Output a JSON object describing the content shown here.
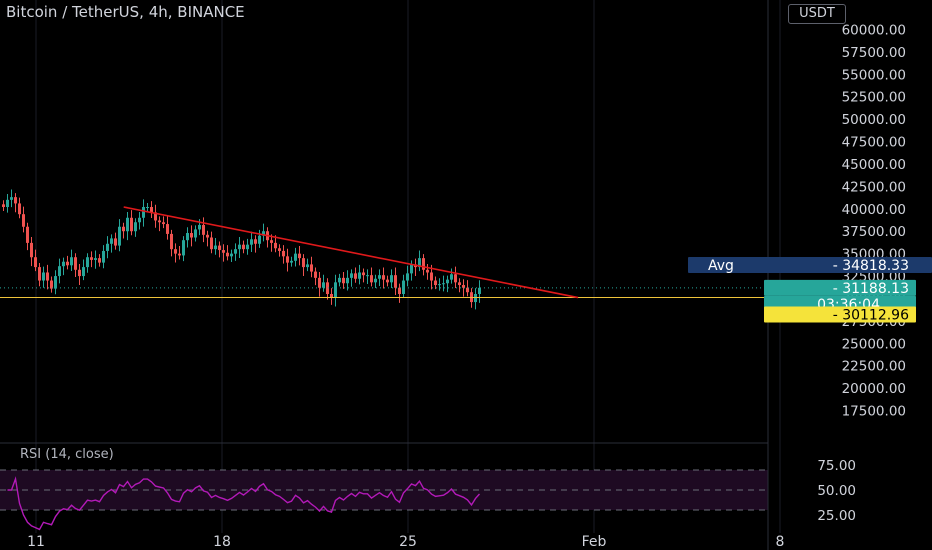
{
  "header": {
    "title": "Bitcoin / TetherUS, 4h, BINANCE",
    "currency": "USDT"
  },
  "rsi": {
    "label": "RSI (14, close)"
  },
  "tags": {
    "avg_label": "Avg",
    "avg_value": "34818.33",
    "last_price": "31188.13",
    "countdown": "03:36:04",
    "level_price": "30112.96"
  },
  "colors": {
    "up": "#26a69a",
    "down": "#ef5350",
    "trendline": "#e0191b",
    "level_line": "#f0c43a",
    "rsi_line": "#b31ab8",
    "rsi_band": "#1e0a22",
    "avg_tag": "#1c3a6b",
    "level_tag": "#f5e33a"
  },
  "chart_data": {
    "type": "candlestick",
    "x_ticks": [
      "11",
      "18",
      "25",
      "Feb",
      "8"
    ],
    "price_axis": {
      "ylim": [
        15000,
        61500
      ],
      "ticks": [
        "60000.00",
        "57500.00",
        "55000.00",
        "52500.00",
        "50000.00",
        "47500.00",
        "45000.00",
        "42500.00",
        "40000.00",
        "37500.00",
        "35000.00",
        "32500.00",
        "30000.00",
        "27500.00",
        "25000.00",
        "22500.00",
        "20000.00",
        "17500.00"
      ]
    },
    "rsi_axis": {
      "ylim": [
        10,
        90
      ],
      "ticks": [
        "75.00",
        "50.00",
        "25.00"
      ],
      "bands": [
        30,
        70
      ]
    },
    "trendline": {
      "from": [
        14.3,
        40200
      ],
      "to": [
        31.4,
        30100
      ]
    },
    "horizontal_level": 30112.96,
    "last_price": 31188.13,
    "close": [
      40200,
      41000,
      41300,
      40600,
      39400,
      38000,
      36200,
      34600,
      33500,
      32000,
      32900,
      32000,
      31100,
      32500,
      33600,
      34100,
      33700,
      34600,
      33200,
      32500,
      33500,
      34600,
      34300,
      34500,
      34000,
      35300,
      36100,
      36700,
      35900,
      38000,
      37500,
      39000,
      37500,
      38500,
      39000,
      40200,
      40200,
      39600,
      38700,
      38500,
      38300,
      37200,
      35500,
      35000,
      34800,
      36500,
      37300,
      36800,
      37700,
      38200,
      37100,
      36800,
      35500,
      35900,
      35400,
      35100,
      34700,
      35000,
      35500,
      36000,
      35500,
      36000,
      36600,
      36100,
      37000,
      37500,
      36500,
      36200,
      35600,
      35300,
      34700,
      34000,
      34200,
      35000,
      34500,
      33500,
      33800,
      33000,
      32300,
      31200,
      31800,
      30500,
      30100,
      31800,
      32300,
      31700,
      32300,
      32800,
      32200,
      32900,
      32600,
      32600,
      31800,
      32200,
      32600,
      32100,
      31800,
      32600,
      31200,
      30500,
      32000,
      32800,
      33800,
      33500,
      34500,
      33200,
      32900,
      32000,
      31500,
      31600,
      31700,
      32100,
      32700,
      31800,
      31500,
      31200,
      30700,
      29600,
      30500,
      31188
    ]
  }
}
